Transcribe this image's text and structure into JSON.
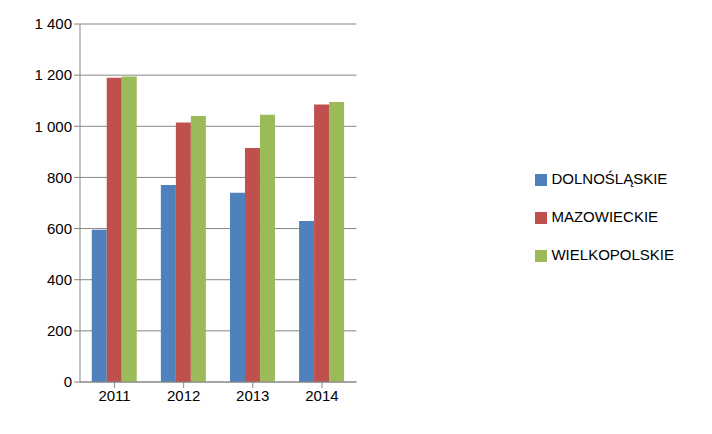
{
  "chart_data": {
    "type": "bar",
    "categories": [
      "2011",
      "2012",
      "2013",
      "2014"
    ],
    "series": [
      {
        "name": "DOLNOŚLĄSKIE",
        "color": "#4f81bd",
        "values": [
          595,
          770,
          740,
          630
        ]
      },
      {
        "name": "MAZOWIECKIE",
        "color": "#c0504d",
        "values": [
          1190,
          1015,
          915,
          1085
        ]
      },
      {
        "name": "WIELKOPOLSKIE",
        "color": "#9bbb59",
        "values": [
          1195,
          1040,
          1045,
          1095
        ]
      }
    ],
    "ylim": [
      0,
      1400
    ],
    "yticks": [
      0,
      200,
      400,
      600,
      800,
      {
        "value": 1000,
        "label": "1 000"
      },
      {
        "value": 1200,
        "label": "1 200"
      },
      {
        "value": 1400,
        "label": "1 400"
      }
    ],
    "grid": true,
    "legend": "right"
  }
}
